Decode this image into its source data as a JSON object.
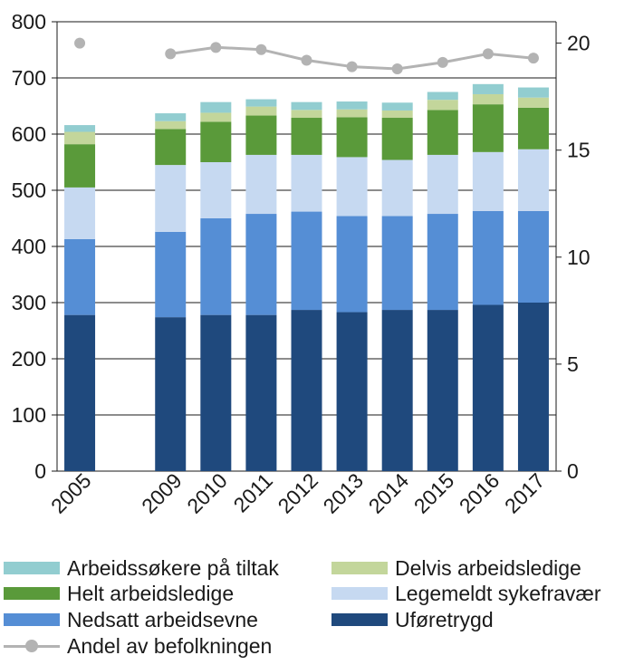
{
  "chart_data": {
    "type": "bar",
    "stacked": true,
    "categories": [
      "2005",
      "2009",
      "2010",
      "2011",
      "2012",
      "2013",
      "2014",
      "2015",
      "2016",
      "2017"
    ],
    "series": [
      {
        "name": "Uføretrygd",
        "color": "#1f497d",
        "values": [
          278,
          274,
          278,
          278,
          287,
          283,
          287,
          287,
          296,
          300
        ]
      },
      {
        "name": "Nedsatt arbeidsevne",
        "color": "#558ed5",
        "values": [
          135,
          152,
          172,
          180,
          175,
          171,
          167,
          171,
          167,
          163
        ]
      },
      {
        "name": "Legemeldt sykefravær",
        "color": "#c6d9f1",
        "values": [
          92,
          119,
          100,
          105,
          101,
          105,
          100,
          105,
          105,
          110
        ]
      },
      {
        "name": "Helt arbeidsledige",
        "color": "#5a9a3a",
        "values": [
          77,
          64,
          72,
          70,
          66,
          71,
          75,
          80,
          85,
          74
        ]
      },
      {
        "name": "Delvis arbeidsledige",
        "color": "#c3d69b",
        "values": [
          22,
          14,
          16,
          16,
          14,
          14,
          13,
          18,
          18,
          18
        ]
      },
      {
        "name": "Arbeidssøkere på tiltak",
        "color": "#92cdd0",
        "values": [
          12,
          14,
          19,
          13,
          14,
          14,
          14,
          14,
          18,
          18
        ]
      }
    ],
    "line_series": {
      "name": "Andel av befolkningen",
      "color": "#b3b3b3",
      "axis": "right",
      "values": [
        20.0,
        19.5,
        19.8,
        19.7,
        19.2,
        18.9,
        18.8,
        19.1,
        19.5,
        19.3
      ]
    },
    "ylim": [
      0,
      800
    ],
    "yticks": [
      0,
      100,
      200,
      300,
      400,
      500,
      600,
      700,
      800
    ],
    "y2lim": [
      0,
      21
    ],
    "y2ticks": [
      0,
      5,
      10,
      15,
      20
    ],
    "grid": true,
    "legend_position": "bottom",
    "title": "",
    "xlabel": "",
    "ylabel": ""
  },
  "legend": {
    "arbeidssokere": "Arbeidssøkere på tiltak",
    "delvis": "Delvis arbeidsledige",
    "helt": "Helt arbeidsledige",
    "legemeldt": "Legemeldt sykefravær",
    "nedsatt": "Nedsatt arbeidsevne",
    "uforetrygd": "Uføretrygd",
    "andel": "Andel av befolkningen"
  }
}
